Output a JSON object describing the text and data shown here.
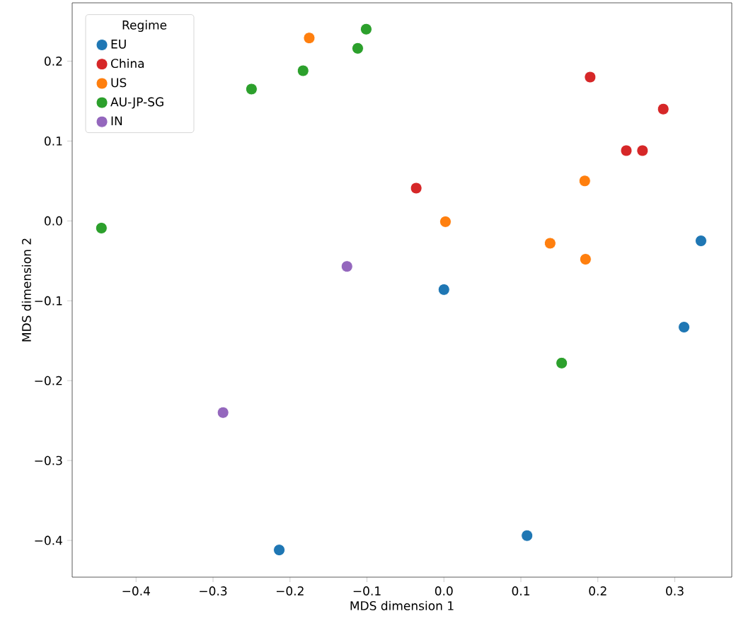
{
  "chart_data": {
    "type": "scatter",
    "xlabel": "MDS dimension 1",
    "ylabel": "MDS dimension 2",
    "legend_title": "Regime",
    "legend": "top left",
    "marker": "circle",
    "grid": false,
    "xlim": [
      -0.483,
      0.374
    ],
    "ylim": [
      -0.446,
      0.273
    ],
    "xticks": [
      {
        "value": -0.4,
        "label": "−0.4"
      },
      {
        "value": -0.3,
        "label": "−0.3"
      },
      {
        "value": -0.2,
        "label": "−0.2"
      },
      {
        "value": -0.1,
        "label": "−0.1"
      },
      {
        "value": 0,
        "label": "0.0"
      },
      {
        "value": 0.1,
        "label": "0.1"
      },
      {
        "value": 0.2,
        "label": "0.2"
      },
      {
        "value": 0.3,
        "label": "0.3"
      }
    ],
    "yticks": [
      {
        "value": -0.4,
        "label": "−0.4"
      },
      {
        "value": -0.3,
        "label": "−0.3"
      },
      {
        "value": -0.2,
        "label": "−0.2"
      },
      {
        "value": -0.1,
        "label": "−0.1"
      },
      {
        "value": 0,
        "label": "0.0"
      },
      {
        "value": 0.1,
        "label": "0.1"
      },
      {
        "value": 0.2,
        "label": "0.2"
      }
    ],
    "series": [
      {
        "name": "EU",
        "color": "#1f77b4",
        "x": [
          0.334,
          0.0,
          0.312,
          0.108,
          -0.214
        ],
        "values": [
          -0.025,
          -0.086,
          -0.133,
          -0.394,
          -0.412
        ]
      },
      {
        "name": "China",
        "color": "#d62728",
        "x": [
          0.19,
          0.285,
          0.237,
          0.258,
          -0.036
        ],
        "values": [
          0.18,
          0.14,
          0.088,
          0.088,
          0.041
        ]
      },
      {
        "name": "US",
        "color": "#ff7f0e",
        "x": [
          -0.175,
          0.183,
          0.002,
          0.138,
          0.184
        ],
        "values": [
          0.229,
          0.05,
          -0.001,
          -0.028,
          -0.048
        ]
      },
      {
        "name": "AU-JP-SG",
        "color": "#2ca02c",
        "x": [
          -0.101,
          -0.112,
          -0.183,
          -0.25,
          -0.445,
          0.153
        ],
        "values": [
          0.24,
          0.216,
          0.188,
          0.165,
          -0.009,
          -0.178
        ]
      },
      {
        "name": "IN",
        "color": "#9467bd",
        "x": [
          -0.126,
          -0.287
        ],
        "values": [
          -0.057,
          -0.24
        ]
      }
    ]
  }
}
